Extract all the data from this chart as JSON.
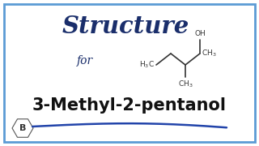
{
  "title": "Structure",
  "subtitle": "for",
  "compound": "3-Methyl-2-pentanol",
  "title_color": "#1a2e6b",
  "subtitle_color": "#1a2e6b",
  "compound_color": "#111111",
  "bg_color": "#ffffff",
  "border_color": "#5b9bd5",
  "underline_color": "#2244aa",
  "logo_text": "B",
  "struct_color": "#333333"
}
